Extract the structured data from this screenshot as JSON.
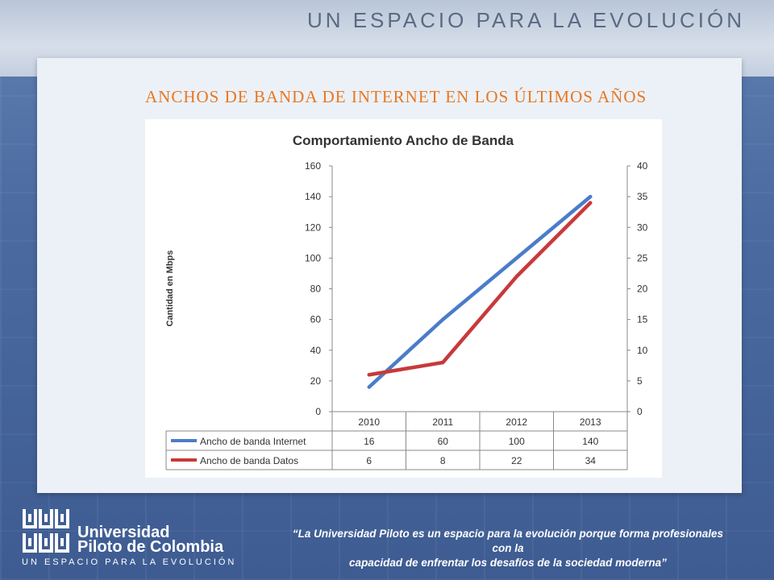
{
  "header": {
    "tagline": "UN ESPACIO PARA LA EVOLUCIÓN"
  },
  "slide": {
    "title": "ANCHOS DE BANDA DE INTERNET EN LOS ÚLTIMOS AÑOS"
  },
  "chart_data": {
    "type": "line",
    "title": "Comportamiento Ancho de Banda",
    "ylabel": "Cantidad en Mbps",
    "categories": [
      "2010",
      "2011",
      "2012",
      "2013"
    ],
    "ylim": [
      0,
      160
    ],
    "yticks": [
      "0",
      "20",
      "40",
      "60",
      "80",
      "100",
      "120",
      "140",
      "160"
    ],
    "y2lim": [
      0,
      40
    ],
    "y2ticks": [
      "0",
      "5",
      "10",
      "15",
      "20",
      "25",
      "30",
      "35",
      "40"
    ],
    "series": [
      {
        "name": "Ancho de banda Internet",
        "values": [
          16,
          60,
          100,
          140
        ],
        "axis": "left",
        "color": "#4a7cc9"
      },
      {
        "name": "Ancho de banda Datos",
        "values": [
          6,
          8,
          22,
          34
        ],
        "axis": "right",
        "color": "#c8393a"
      }
    ],
    "data_table": true,
    "grid": false
  },
  "footer": {
    "brand_line1": "Universidad",
    "brand_line2": "Piloto de Colombia",
    "brand_tagline": "UN ESPACIO PARA LA EVOLUCIÓN",
    "quote_line1": "“La Universidad Piloto es un espacio para la evolución porque forma profesionales con la",
    "quote_line2": "capacidad de enfrentar los desafíos de la sociedad moderna”"
  }
}
